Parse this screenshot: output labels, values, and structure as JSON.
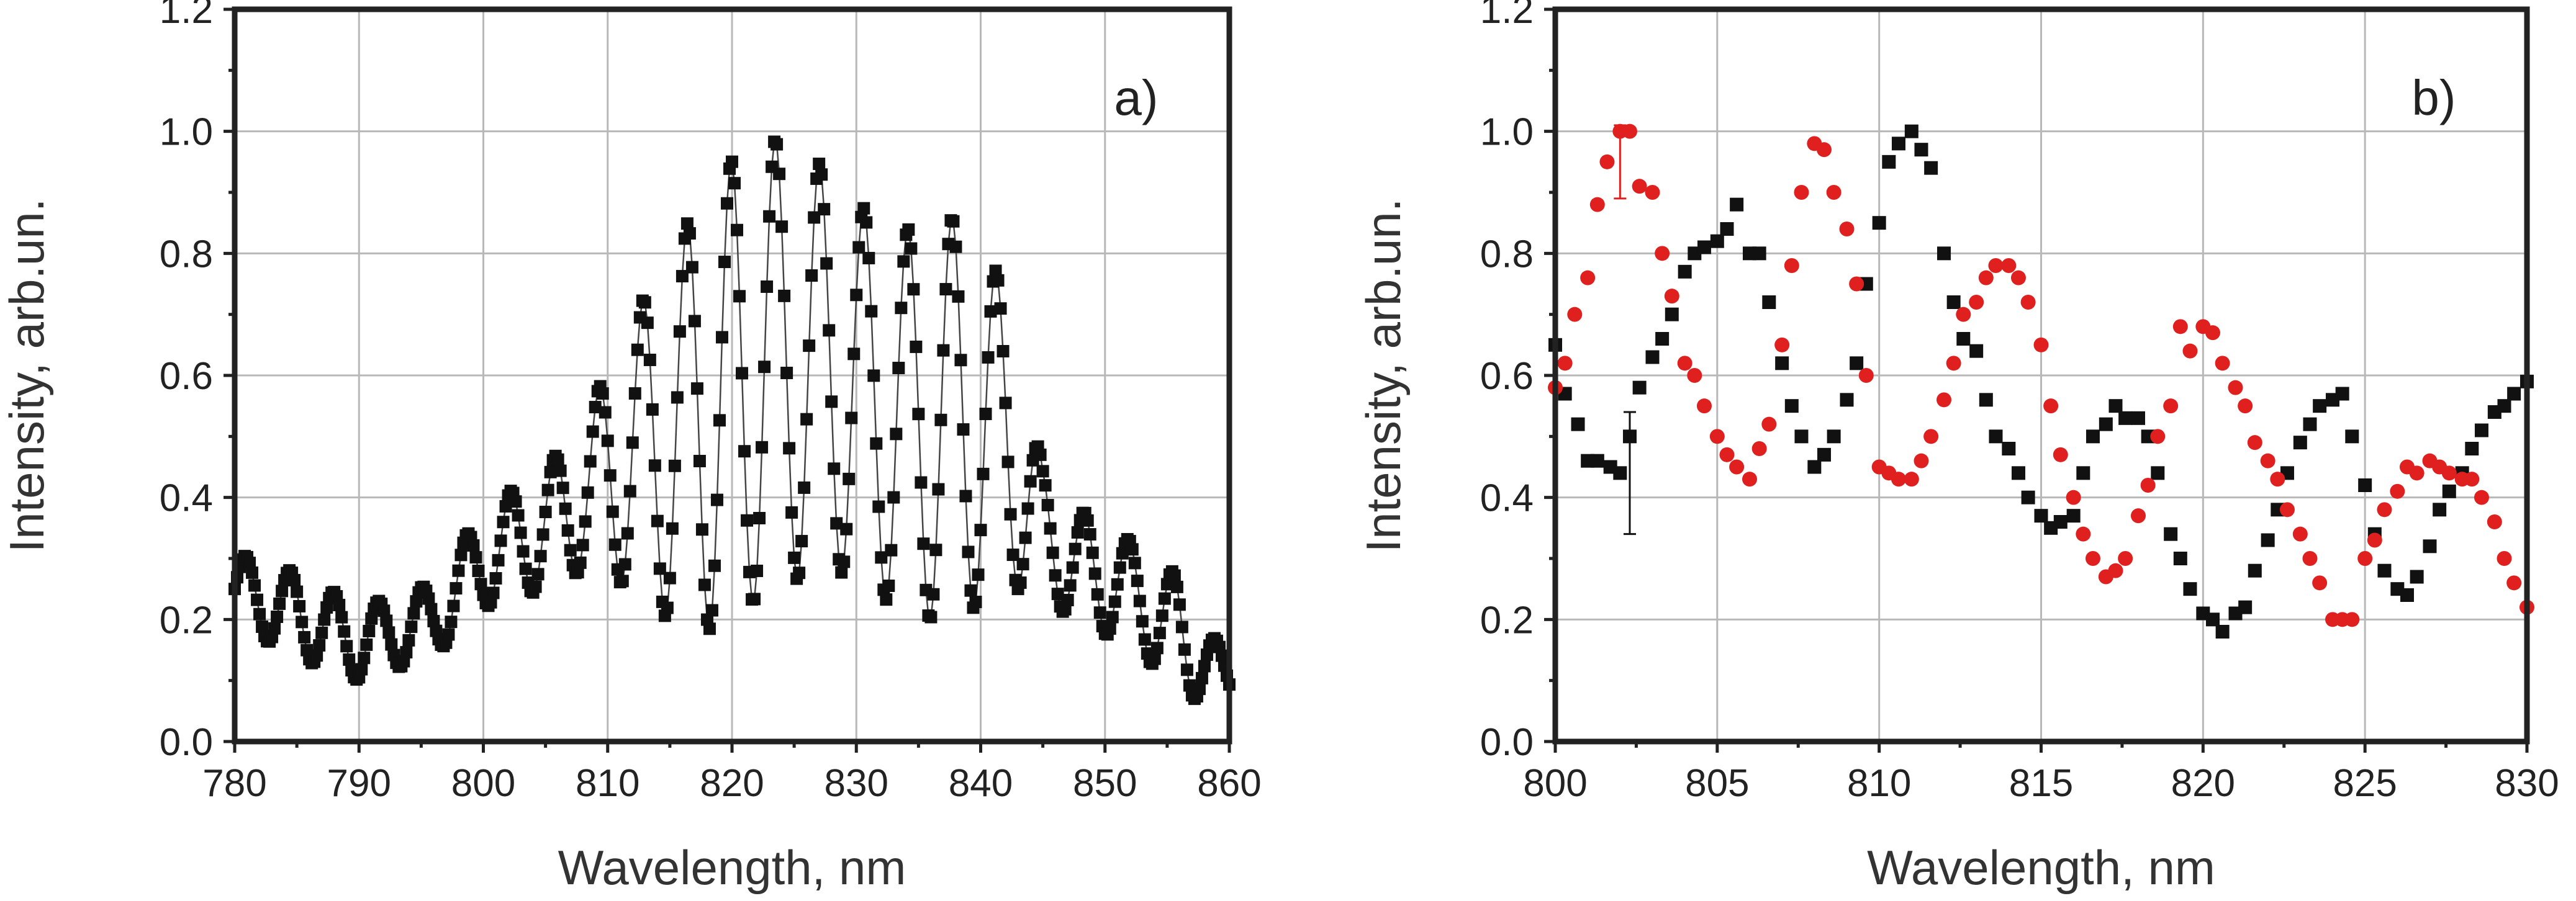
{
  "colors": {
    "black": "#111111",
    "red": "#e0201e"
  },
  "chart_data": [
    {
      "type": "scatter",
      "panel_label": "a)",
      "title": "",
      "xlabel": "Wavelength, nm",
      "ylabel": "Intensity, arb.un.",
      "xlim": [
        780,
        860
      ],
      "ylim": [
        0,
        1.2
      ],
      "xticks": [
        "780",
        "790",
        "800",
        "810",
        "820",
        "830",
        "840",
        "850",
        "860"
      ],
      "yticks": [
        "0.0",
        "0.2",
        "0.4",
        "0.6",
        "0.8",
        "1.0",
        "1.2"
      ],
      "grid": true,
      "connected": true,
      "series": [
        {
          "name": "spectrum",
          "marker": "square",
          "color": "#111111",
          "model": {
            "x_start": 780,
            "x_end": 860,
            "step": 0.2,
            "fringe_period_nm": 3.55,
            "envelope": [
              [
                780,
                0.25,
                0.06
              ],
              [
                786,
                0.2,
                0.07
              ],
              [
                790,
                0.16,
                0.06
              ],
              [
                796,
                0.2,
                0.06
              ],
              [
                800,
                0.3,
                0.08
              ],
              [
                805,
                0.35,
                0.1
              ],
              [
                808,
                0.4,
                0.12
              ],
              [
                811,
                0.46,
                0.2
              ],
              [
                815,
                0.5,
                0.3
              ],
              [
                819,
                0.56,
                0.38
              ],
              [
                823,
                0.62,
                0.37
              ],
              [
                826,
                0.62,
                0.35
              ],
              [
                830,
                0.58,
                0.3
              ],
              [
                834,
                0.52,
                0.32
              ],
              [
                838,
                0.53,
                0.33
              ],
              [
                842,
                0.5,
                0.25
              ],
              [
                845,
                0.35,
                0.1
              ],
              [
                848,
                0.28,
                0.1
              ],
              [
                852,
                0.25,
                0.08
              ],
              [
                856,
                0.17,
                0.1
              ],
              [
                860,
                0.1,
                0.03
              ]
            ]
          }
        }
      ]
    },
    {
      "type": "scatter",
      "panel_label": "b)",
      "title": "",
      "xlabel": "Wavelength, nm",
      "ylabel": "Intensity, arb.un.",
      "xlim": [
        800,
        830
      ],
      "ylim": [
        0,
        1.2
      ],
      "xticks": [
        "800",
        "805",
        "810",
        "815",
        "820",
        "825",
        "830"
      ],
      "yticks": [
        "0.0",
        "0.2",
        "0.4",
        "0.6",
        "0.8",
        "1.0",
        "1.2"
      ],
      "grid": true,
      "connected": false,
      "series": [
        {
          "name": "black squares",
          "marker": "square",
          "color": "#111111",
          "x": [
            800,
            800.3,
            800.7,
            801,
            801.3,
            801.7,
            802,
            802.3,
            802.6,
            803,
            803.3,
            803.6,
            804,
            804.3,
            804.6,
            805,
            805.3,
            805.6,
            806,
            806.3,
            806.6,
            807,
            807.3,
            807.6,
            808,
            808.3,
            808.6,
            809,
            809.3,
            809.6,
            810,
            810.3,
            810.6,
            811,
            811.3,
            811.6,
            812,
            812.3,
            812.6,
            813,
            813.3,
            813.6,
            814,
            814.3,
            814.6,
            815,
            815.3,
            815.6,
            816,
            816.3,
            816.6,
            817,
            817.3,
            817.6,
            818,
            818.3,
            818.6,
            819,
            819.3,
            819.6,
            820,
            820.3,
            820.6,
            821,
            821.3,
            821.6,
            822,
            822.3,
            822.6,
            823,
            823.3,
            823.6,
            824,
            824.3,
            824.6,
            825,
            825.3,
            825.6,
            826,
            826.3,
            826.6,
            827,
            827.3,
            827.6,
            828,
            828.3,
            828.6,
            829,
            829.3,
            829.6,
            830
          ],
          "y": [
            0.65,
            0.57,
            0.52,
            0.46,
            0.46,
            0.45,
            0.44,
            0.5,
            0.58,
            0.63,
            0.66,
            0.7,
            0.77,
            0.8,
            0.81,
            0.82,
            0.84,
            0.88,
            0.8,
            0.8,
            0.72,
            0.62,
            0.55,
            0.5,
            0.45,
            0.47,
            0.5,
            0.56,
            0.62,
            0.75,
            0.85,
            0.95,
            0.98,
            1.0,
            0.97,
            0.94,
            0.8,
            0.72,
            0.66,
            0.64,
            0.56,
            0.5,
            0.48,
            0.44,
            0.4,
            0.37,
            0.35,
            0.36,
            0.37,
            0.44,
            0.5,
            0.52,
            0.55,
            0.53,
            0.53,
            0.5,
            0.44,
            0.34,
            0.3,
            0.25,
            0.21,
            0.2,
            0.18,
            0.21,
            0.22,
            0.28,
            0.33,
            0.38,
            0.44,
            0.49,
            0.52,
            0.55,
            0.56,
            0.57,
            0.5,
            0.42,
            0.34,
            0.28,
            0.25,
            0.24,
            0.27,
            0.32,
            0.38,
            0.41,
            0.44,
            0.48,
            0.51,
            0.54,
            0.55,
            0.57,
            0.59
          ],
          "error_bars": [
            {
              "x": 802.3,
              "y": 0.44,
              "err": 0.1
            }
          ]
        },
        {
          "name": "red circles",
          "marker": "circle",
          "color": "#e0201e",
          "x": [
            800,
            800.3,
            800.6,
            801,
            801.3,
            801.6,
            802,
            802.3,
            802.6,
            803,
            803.3,
            803.6,
            804,
            804.3,
            804.6,
            805,
            805.3,
            805.6,
            806,
            806.3,
            806.6,
            807,
            807.3,
            807.6,
            808,
            808.3,
            808.6,
            809,
            809.3,
            809.6,
            810,
            810.3,
            810.6,
            811,
            811.3,
            811.6,
            812,
            812.3,
            812.6,
            813,
            813.3,
            813.6,
            814,
            814.3,
            814.6,
            815,
            815.3,
            815.6,
            816,
            816.3,
            816.6,
            817,
            817.3,
            817.6,
            818,
            818.3,
            818.6,
            819,
            819.3,
            819.6,
            820,
            820.3,
            820.6,
            821,
            821.3,
            821.6,
            822,
            822.3,
            822.6,
            823,
            823.3,
            823.6,
            824,
            824.3,
            824.6,
            825,
            825.3,
            825.6,
            826,
            826.3,
            826.6,
            827,
            827.3,
            827.6,
            828,
            828.3,
            828.6,
            829,
            829.3,
            829.6,
            830
          ],
          "y": [
            0.58,
            0.62,
            0.7,
            0.76,
            0.88,
            0.95,
            1.0,
            1.0,
            0.91,
            0.9,
            0.8,
            0.73,
            0.62,
            0.6,
            0.55,
            0.5,
            0.47,
            0.45,
            0.43,
            0.48,
            0.52,
            0.65,
            0.78,
            0.9,
            0.98,
            0.97,
            0.9,
            0.84,
            0.75,
            0.6,
            0.45,
            0.44,
            0.43,
            0.43,
            0.46,
            0.5,
            0.56,
            0.62,
            0.7,
            0.72,
            0.76,
            0.78,
            0.78,
            0.76,
            0.72,
            0.65,
            0.55,
            0.47,
            0.4,
            0.34,
            0.3,
            0.27,
            0.28,
            0.3,
            0.37,
            0.42,
            0.5,
            0.55,
            0.68,
            0.64,
            0.68,
            0.67,
            0.62,
            0.58,
            0.55,
            0.49,
            0.46,
            0.43,
            0.38,
            0.34,
            0.3,
            0.26,
            0.2,
            0.2,
            0.2,
            0.3,
            0.33,
            0.38,
            0.41,
            0.45,
            0.44,
            0.46,
            0.45,
            0.44,
            0.43,
            0.43,
            0.4,
            0.36,
            0.3,
            0.26,
            0.22
          ],
          "error_bars": [
            {
              "x": 802,
              "y": 0.95,
              "err": 0.06
            }
          ]
        }
      ]
    }
  ]
}
